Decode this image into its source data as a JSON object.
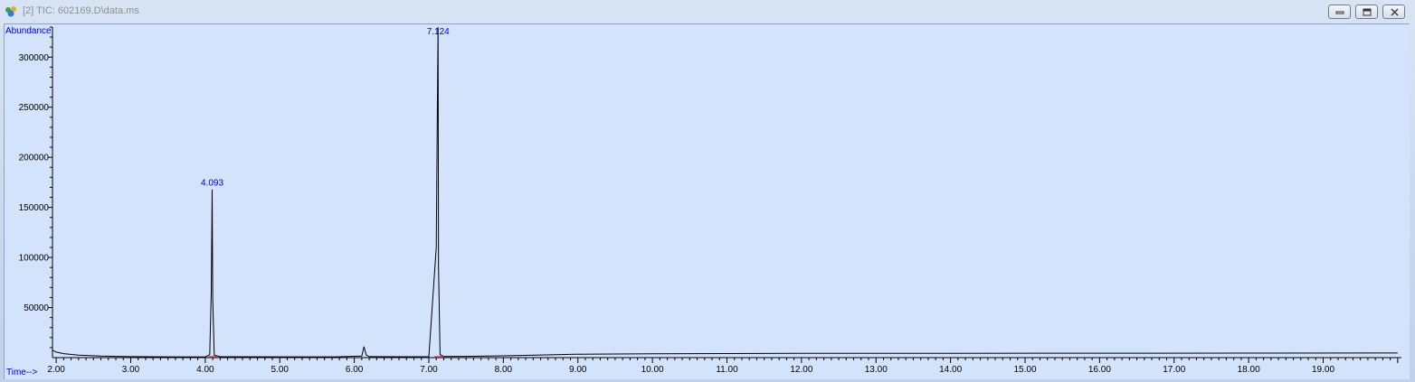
{
  "window": {
    "title": "[2] TIC: 602169.D\\data.ms",
    "buttons": [
      "minimize",
      "restore",
      "close"
    ]
  },
  "colors": {
    "plot_background": "#d2e3fb",
    "trace": "#000000",
    "labels": "#0000cc",
    "axis": "#000000"
  },
  "chart_data": {
    "type": "line",
    "title": "",
    "xlabel": "Time-->",
    "ylabel": "Abundance",
    "xlim": [
      1.95,
      20.05
    ],
    "ylim": [
      0,
      330000
    ],
    "x_ticks": [
      "2.00",
      "3.00",
      "4.00",
      "5.00",
      "6.00",
      "7.00",
      "8.00",
      "9.00",
      "10.00",
      "11.00",
      "12.00",
      "13.00",
      "14.00",
      "15.00",
      "16.00",
      "17.00",
      "18.00",
      "19.00"
    ],
    "y_ticks": [
      "50000",
      "100000",
      "150000",
      "200000",
      "250000",
      "300000"
    ],
    "series": [
      {
        "x": [
          1.95,
          2.0,
          2.1,
          2.3,
          2.6,
          3.0,
          3.5,
          4.0,
          4.06,
          4.08,
          4.093,
          4.1,
          4.12,
          4.2,
          5.0,
          5.8,
          6.1,
          6.13,
          6.16,
          6.2,
          6.6,
          7.0,
          7.1,
          7.115,
          7.124,
          7.13,
          7.15,
          7.2,
          7.5,
          8.0,
          8.5,
          9.0,
          10.0,
          12.0,
          14.0,
          16.0,
          18.0,
          20.0
        ],
        "y": [
          7500,
          5500,
          4000,
          2500,
          1500,
          1000,
          800,
          700,
          3000,
          65000,
          168000,
          60000,
          2500,
          900,
          800,
          900,
          1500,
          11000,
          2500,
          1000,
          900,
          1000,
          110000,
          258000,
          330000,
          90000,
          3000,
          1200,
          1300,
          1800,
          2600,
          3400,
          3900,
          4200,
          4300,
          4400,
          4500,
          4600
        ]
      }
    ],
    "peak_labels": [
      {
        "text": "4.093",
        "x": 4.093,
        "y": 168000
      },
      {
        "text": "7.124",
        "x": 7.124,
        "y": 330000
      }
    ]
  }
}
